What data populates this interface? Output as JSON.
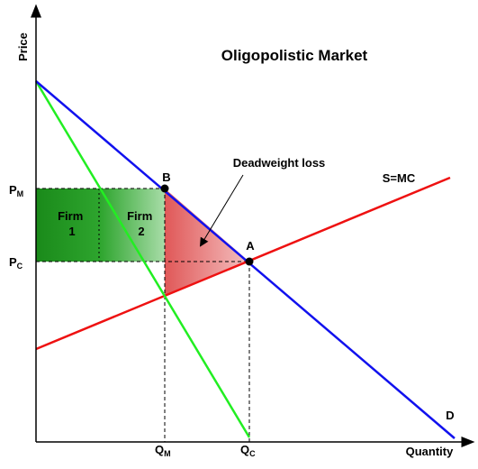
{
  "title": "Oligopolistic Market",
  "axes": {
    "y_label": "Price",
    "x_label": "Quantity"
  },
  "curves": {
    "supply": "S=MC",
    "demand": "D"
  },
  "points": {
    "a": "A",
    "b": "B"
  },
  "annotation": "Deadweight loss",
  "regions": {
    "firm_1": [
      "Firm",
      "1"
    ],
    "firm_2": [
      "Firm",
      "2"
    ]
  },
  "price_levels": [
    {
      "main": "P",
      "sub": "M"
    },
    {
      "main": "P",
      "sub": "C"
    }
  ],
  "quantity_levels": [
    {
      "main": "Q",
      "sub": "M"
    },
    {
      "main": "Q",
      "sub": "C"
    }
  ]
}
